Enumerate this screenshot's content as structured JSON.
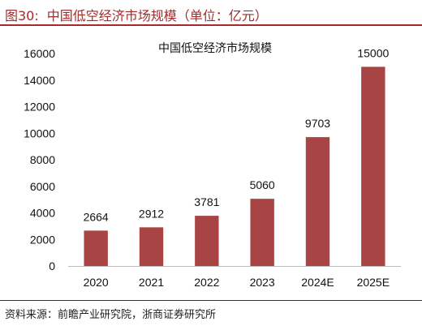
{
  "figure": {
    "number": "图30:",
    "caption": "中国低空经济市场规模（单位：亿元）",
    "source": "资料来源：前瞻产业研究院，浙商证券研究所"
  },
  "chart_data": {
    "type": "bar",
    "title": "中国低空经济市场规模",
    "categories": [
      "2020",
      "2021",
      "2022",
      "2023",
      "2024E",
      "2025E"
    ],
    "values": [
      2664,
      2912,
      3781,
      5060,
      9703,
      15000
    ],
    "data_labels": [
      "2664",
      "2912",
      "3781",
      "5060",
      "9703",
      "15000"
    ],
    "xlabel": "",
    "ylabel": "",
    "ylim": [
      0,
      16000
    ],
    "yticks": [
      0,
      2000,
      4000,
      6000,
      8000,
      10000,
      12000,
      14000,
      16000
    ],
    "grid": false,
    "legend": "none",
    "colors": {
      "bar": "#a84444",
      "accent": "#a52a2a"
    }
  }
}
